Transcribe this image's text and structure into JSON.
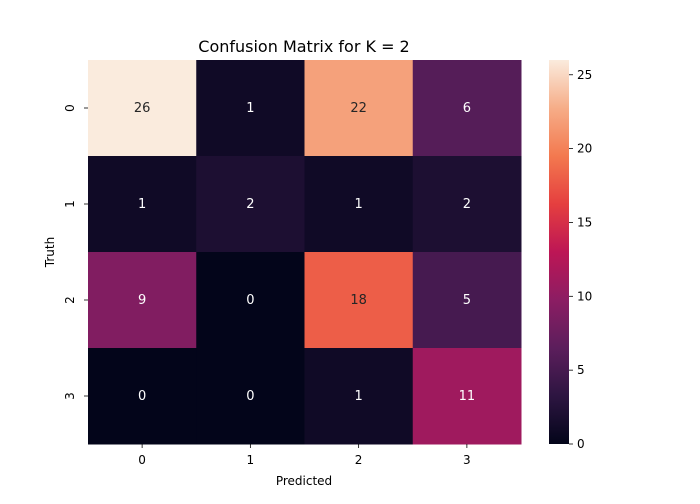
{
  "chart_data": {
    "type": "heatmap",
    "title": "Confusion Matrix for K = 2",
    "xlabel": "Predicted",
    "ylabel": "Truth",
    "x_categories": [
      "0",
      "1",
      "2",
      "3"
    ],
    "y_categories": [
      "0",
      "1",
      "2",
      "3"
    ],
    "values": [
      [
        26,
        1,
        22,
        6
      ],
      [
        1,
        2,
        1,
        2
      ],
      [
        9,
        0,
        18,
        5
      ],
      [
        0,
        0,
        1,
        11
      ]
    ],
    "colorbar": {
      "min": 0,
      "max": 26,
      "ticks": [
        0,
        5,
        10,
        15,
        20,
        25
      ]
    },
    "colormap": [
      "#03051a",
      "#2d1541",
      "#5c1e5c",
      "#8c1d63",
      "#bd1655",
      "#e53f3f",
      "#f3794f",
      "#f6ad88",
      "#faebdd"
    ]
  }
}
